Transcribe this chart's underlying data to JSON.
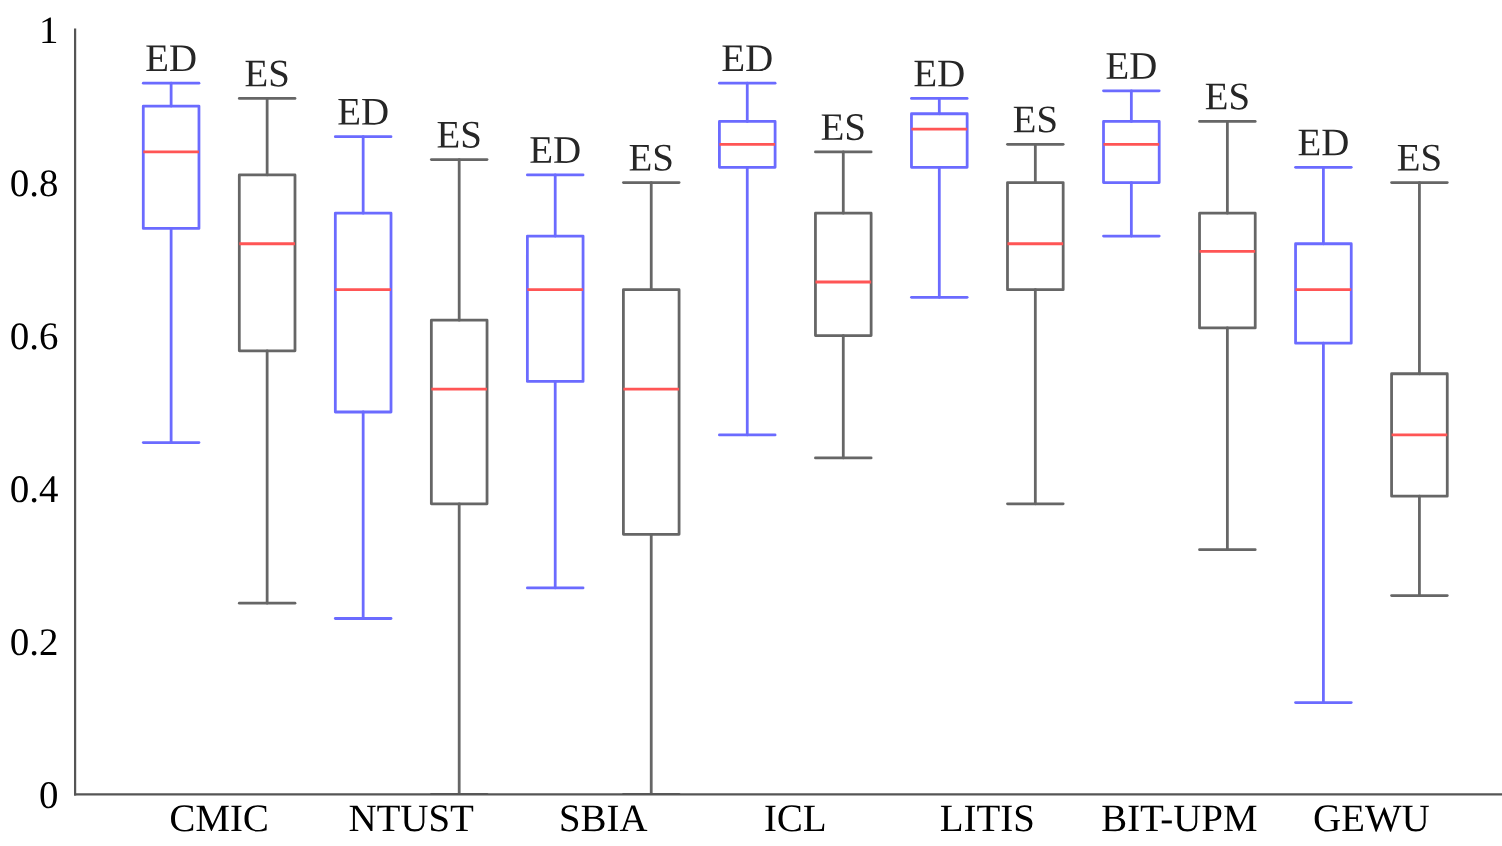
{
  "chart_data": {
    "type": "box",
    "categories": [
      "CMIC",
      "NTUST",
      "SBIA",
      "ICL",
      "LITIS",
      "BIT-UPM",
      "GEWU"
    ],
    "series": [
      {
        "name": "ED",
        "color": "#6b6bff",
        "boxes": [
          {
            "low": 0.46,
            "q1": 0.74,
            "median": 0.84,
            "q3": 0.9,
            "high": 0.93
          },
          {
            "low": 0.23,
            "q1": 0.5,
            "median": 0.66,
            "q3": 0.76,
            "high": 0.86
          },
          {
            "low": 0.27,
            "q1": 0.54,
            "median": 0.66,
            "q3": 0.73,
            "high": 0.81
          },
          {
            "low": 0.47,
            "q1": 0.82,
            "median": 0.85,
            "q3": 0.88,
            "high": 0.93
          },
          {
            "low": 0.65,
            "q1": 0.82,
            "median": 0.87,
            "q3": 0.89,
            "high": 0.91
          },
          {
            "low": 0.73,
            "q1": 0.8,
            "median": 0.85,
            "q3": 0.88,
            "high": 0.92
          },
          {
            "low": 0.12,
            "q1": 0.59,
            "median": 0.66,
            "q3": 0.72,
            "high": 0.82
          }
        ]
      },
      {
        "name": "ES",
        "color": "#666666",
        "boxes": [
          {
            "low": 0.25,
            "q1": 0.58,
            "median": 0.72,
            "q3": 0.81,
            "high": 0.91
          },
          {
            "low": 0,
            "q1": 0.38,
            "median": 0.53,
            "q3": 0.62,
            "high": 0.83
          },
          {
            "low": 0,
            "q1": 0.34,
            "median": 0.53,
            "q3": 0.66,
            "high": 0.8
          },
          {
            "low": 0.44,
            "q1": 0.6,
            "median": 0.67,
            "q3": 0.76,
            "high": 0.84
          },
          {
            "low": 0.38,
            "q1": 0.66,
            "median": 0.72,
            "q3": 0.8,
            "high": 0.85
          },
          {
            "low": 0.32,
            "q1": 0.61,
            "median": 0.71,
            "q3": 0.76,
            "high": 0.88
          },
          {
            "low": 0.26,
            "q1": 0.39,
            "median": 0.47,
            "q3": 0.55,
            "high": 0.8
          }
        ]
      }
    ],
    "ylim": [
      0,
      1
    ],
    "yticks": [
      0,
      0.2,
      0.4,
      0.6,
      0.8,
      1
    ],
    "grid": false,
    "legend": false
  }
}
